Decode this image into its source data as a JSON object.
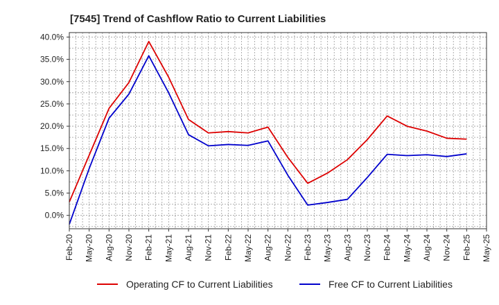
{
  "chart_data": {
    "type": "line",
    "title": "[7545]  Trend of Cashflow Ratio to Current Liabilities",
    "xlabel": "",
    "ylabel": "",
    "ylim": [
      -3,
      41
    ],
    "yticks": [
      0,
      5,
      10,
      15,
      20,
      25,
      30,
      35,
      40
    ],
    "ytick_labels": [
      "0.0%",
      "5.0%",
      "10.0%",
      "15.0%",
      "20.0%",
      "25.0%",
      "30.0%",
      "35.0%",
      "40.0%"
    ],
    "x_tick_labels": [
      "Feb-20",
      "May-20",
      "Aug-20",
      "Nov-20",
      "Feb-21",
      "May-21",
      "Aug-21",
      "Nov-21",
      "Feb-22",
      "May-22",
      "Aug-22",
      "Nov-22",
      "Feb-23",
      "May-23",
      "Aug-23",
      "Nov-23",
      "Feb-24",
      "May-24",
      "Aug-24",
      "Nov-24",
      "Feb-25",
      "May-25"
    ],
    "categories": [
      "Feb-20",
      "May-20",
      "Aug-20",
      "Nov-20",
      "Feb-21",
      "May-21",
      "Aug-21",
      "Nov-21",
      "Feb-22",
      "May-22",
      "Aug-22",
      "Nov-22",
      "Feb-23",
      "May-23",
      "Aug-23",
      "Nov-23",
      "Feb-24",
      "May-24",
      "Aug-24",
      "Nov-24",
      "Feb-25"
    ],
    "grid": true,
    "legend_position": "bottom",
    "series": [
      {
        "name": "Operating CF to Current Liabilities",
        "color": "#dd0000",
        "values": [
          3.0,
          13.5,
          24.0,
          29.8,
          39.0,
          31.0,
          21.5,
          18.5,
          18.8,
          18.5,
          19.8,
          13.0,
          7.2,
          9.5,
          12.5,
          17.0,
          22.3,
          20.0,
          18.9,
          17.3,
          17.1
        ]
      },
      {
        "name": "Free CF to Current Liabilities",
        "color": "#0000cc",
        "values": [
          -2.0,
          10.5,
          21.8,
          27.2,
          35.8,
          27.5,
          18.1,
          15.6,
          15.9,
          15.7,
          16.7,
          9.0,
          2.3,
          2.9,
          3.6,
          8.5,
          13.7,
          13.4,
          13.6,
          13.2,
          13.8
        ]
      }
    ]
  }
}
